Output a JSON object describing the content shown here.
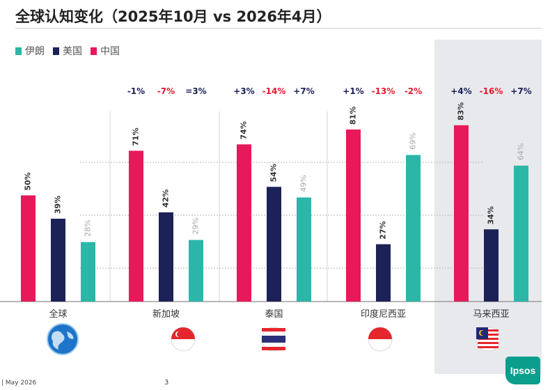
{
  "title": "全球认知变化（2025年10月 vs 2026年4月）",
  "legend": [
    {
      "name": "伊朗",
      "color": "#2bb6a8"
    },
    {
      "name": "美国",
      "color": "#1c2157"
    },
    {
      "name": "中国",
      "color": "#e8195a"
    }
  ],
  "chart_data": {
    "type": "bar",
    "categories": [
      "全球",
      "新加坡",
      "泰国",
      "印度尼西亚",
      "马来西亚"
    ],
    "series": [
      {
        "name": "中国",
        "color": "#e8195a",
        "values": [
          50,
          71,
          74,
          81,
          83
        ],
        "labels": [
          "50%",
          "71%",
          "74%",
          "81%",
          "83%"
        ]
      },
      {
        "name": "美国",
        "color": "#1c2157",
        "values": [
          39,
          42,
          54,
          27,
          34
        ],
        "labels": [
          "39%",
          "42%",
          "54%",
          "27%",
          "34%"
        ]
      },
      {
        "name": "伊朗",
        "color": "#2bb6a8",
        "values": [
          28,
          29,
          49,
          69,
          64
        ],
        "labels": [
          "28%",
          "29%",
          "49%",
          "69%",
          "64%"
        ]
      }
    ],
    "changes": [
      null,
      [
        {
          "text": "-1%",
          "color": "#1c2157"
        },
        {
          "text": "-7%",
          "color": "#e8192c"
        },
        {
          "text": "=3%",
          "color": "#1c2157"
        }
      ],
      [
        {
          "text": "+3%",
          "color": "#1c2157"
        },
        {
          "text": "-14%",
          "color": "#e8192c"
        },
        {
          "text": "+7%",
          "color": "#1c2157"
        }
      ],
      [
        {
          "text": "+1%",
          "color": "#1c2157"
        },
        {
          "text": "-13%",
          "color": "#e8192c"
        },
        {
          "text": "-2%",
          "color": "#e8192c"
        }
      ],
      [
        {
          "text": "+4%",
          "color": "#1c2157"
        },
        {
          "text": "-16%",
          "color": "#e8192c"
        },
        {
          "text": "+7%",
          "color": "#1c2157"
        }
      ]
    ],
    "highlighted_category": "马来西亚",
    "ylim": [
      0,
      100
    ],
    "grid": true
  },
  "footer": {
    "date": "| May 2026",
    "page": "3",
    "logo": "Ipsos"
  }
}
